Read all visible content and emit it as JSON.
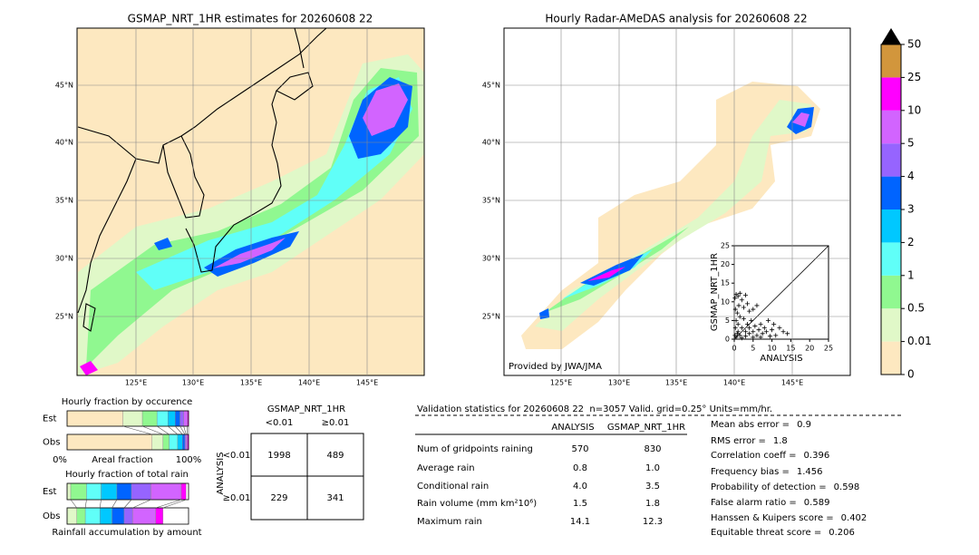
{
  "maps": [
    {
      "title": "GSMAP_NRT_1HR estimates for 20260608 22",
      "lat_labels": [
        "45°N",
        "40°N",
        "35°N",
        "30°N",
        "25°N"
      ],
      "lon_labels": [
        "125°E",
        "130°E",
        "135°E",
        "140°E",
        "145°E"
      ]
    },
    {
      "title": "Hourly Radar-AMeDAS analysis for 20260608 22",
      "lat_labels": [
        "45°N",
        "40°N",
        "35°N",
        "30°N",
        "25°N"
      ],
      "lon_labels": [
        "125°E",
        "130°E",
        "135°E",
        "140°E",
        "145°E"
      ],
      "credit": "Provided by JWA/JMA"
    }
  ],
  "colorbar": {
    "levels": [
      0,
      0.01,
      0.5,
      1,
      2,
      3,
      4,
      5,
      10,
      25,
      50
    ],
    "colors": [
      "#fde8c0",
      "#e0f8c8",
      "#90f890",
      "#60fff8",
      "#00c8ff",
      "#0064ff",
      "#9664ff",
      "#d264ff",
      "#ff00ff",
      "#d2963c"
    ],
    "extend_color": "#000000"
  },
  "scatter": {
    "type": "scatter",
    "xlabel": "ANALYSIS",
    "ylabel": "GSMAP_NRT_1HR",
    "xlim": [
      0,
      25
    ],
    "ylim": [
      0,
      25
    ],
    "xticks": [
      0,
      5,
      10,
      15,
      20,
      25
    ],
    "yticks": [
      0,
      5,
      10,
      15,
      20,
      25
    ],
    "points": [
      [
        0.2,
        11
      ],
      [
        0.5,
        12
      ],
      [
        1,
        11.5
      ],
      [
        1.5,
        12.3
      ],
      [
        2,
        10.5
      ],
      [
        3,
        11.8
      ],
      [
        0.3,
        8
      ],
      [
        0.8,
        7
      ],
      [
        1.2,
        9
      ],
      [
        2.5,
        8.5
      ],
      [
        3.5,
        9.5
      ],
      [
        4,
        7.5
      ],
      [
        5,
        8
      ],
      [
        6,
        9
      ],
      [
        0.5,
        5
      ],
      [
        1,
        4
      ],
      [
        1.5,
        6
      ],
      [
        2,
        3
      ],
      [
        2.5,
        5.5
      ],
      [
        3,
        2
      ],
      [
        3.5,
        4
      ],
      [
        4,
        3
      ],
      [
        4.5,
        5
      ],
      [
        5,
        2
      ],
      [
        5.5,
        3.5
      ],
      [
        6,
        1
      ],
      [
        6.5,
        2.5
      ],
      [
        7,
        4
      ],
      [
        7.5,
        1.5
      ],
      [
        8,
        3
      ],
      [
        8.5,
        2
      ],
      [
        9,
        5
      ],
      [
        10,
        2.5
      ],
      [
        10.5,
        4
      ],
      [
        11,
        1
      ],
      [
        12,
        3
      ],
      [
        13,
        2
      ],
      [
        14.1,
        1.5
      ],
      [
        0.2,
        1
      ],
      [
        0.5,
        0.5
      ],
      [
        1,
        2
      ],
      [
        1.5,
        1
      ],
      [
        2,
        0.3
      ],
      [
        3,
        0.8
      ],
      [
        4,
        1.5
      ],
      [
        5,
        0.5
      ],
      [
        0.3,
        3
      ],
      [
        0.8,
        1.5
      ],
      [
        9.5,
        0.8
      ],
      [
        7,
        0.5
      ]
    ]
  },
  "occurrence": {
    "title": "Hourly fraction by occurence",
    "colors": [
      "#fde8c0",
      "#e0f8c8",
      "#90f890",
      "#60fff8",
      "#00c8ff",
      "#0064ff",
      "#9664ff",
      "#d264ff",
      "#ff00ff"
    ],
    "rows": [
      {
        "name": "Est",
        "values": [
          46,
          16,
          12,
          9,
          6,
          4,
          3,
          3,
          1
        ]
      },
      {
        "name": "Obs",
        "values": [
          70,
          9,
          5,
          7,
          4,
          2,
          1,
          1,
          1
        ]
      }
    ],
    "x_start": "0%",
    "xlabel": "Areal fraction",
    "x_end": "100%"
  },
  "total_rain": {
    "title": "Hourly fraction of total rain",
    "colors": [
      "#e0f8c8",
      "#90f890",
      "#60fff8",
      "#00c8ff",
      "#0064ff",
      "#9664ff",
      "#d264ff",
      "#ff00ff"
    ],
    "rows": [
      {
        "name": "Est",
        "values": [
          3,
          13,
          12,
          13,
          12,
          16,
          25,
          4
        ]
      },
      {
        "name": "Obs",
        "values": [
          8,
          7,
          12,
          10,
          10,
          7,
          19,
          6
        ]
      }
    ],
    "xlabel": "Rainfall accumulation by amount"
  },
  "contingency": {
    "title": "GSMAP_NRT_1HR",
    "ylabel": "ANALYSIS",
    "col_labels": [
      "<0.01",
      "≥0.01"
    ],
    "row_labels": [
      "<0.01",
      "≥0.01"
    ],
    "cells": [
      [
        "1998",
        "489"
      ],
      [
        "229",
        "341"
      ]
    ]
  },
  "validation": {
    "title": "Validation statistics for 20260608 22  n=3057 Valid. grid=0.25° Units=mm/hr.",
    "columns": [
      "ANALYSIS",
      "GSMAP_NRT_1HR"
    ],
    "rows": [
      {
        "label": "Num of gridpoints raining",
        "values": [
          "570",
          "830"
        ]
      },
      {
        "label": "Average rain",
        "values": [
          "0.8",
          "1.0"
        ]
      },
      {
        "label": "Conditional rain",
        "values": [
          "4.0",
          "3.5"
        ]
      },
      {
        "label": "Rain volume (mm km²10⁶)",
        "values": [
          "1.5",
          "1.8"
        ]
      },
      {
        "label": "Maximum rain",
        "values": [
          "14.1",
          "12.3"
        ]
      }
    ],
    "scores": [
      {
        "label": "Mean abs error =",
        "value": "0.9"
      },
      {
        "label": "RMS error =",
        "value": "1.8"
      },
      {
        "label": "Correlation coeff =",
        "value": "0.396"
      },
      {
        "label": "Frequency bias =",
        "value": "1.456"
      },
      {
        "label": "Probability of detection =",
        "value": "0.598"
      },
      {
        "label": "False alarm ratio =",
        "value": "0.589"
      },
      {
        "label": "Hanssen & Kuipers score =",
        "value": "0.402"
      },
      {
        "label": "Equitable threat score =",
        "value": "0.206"
      }
    ]
  }
}
